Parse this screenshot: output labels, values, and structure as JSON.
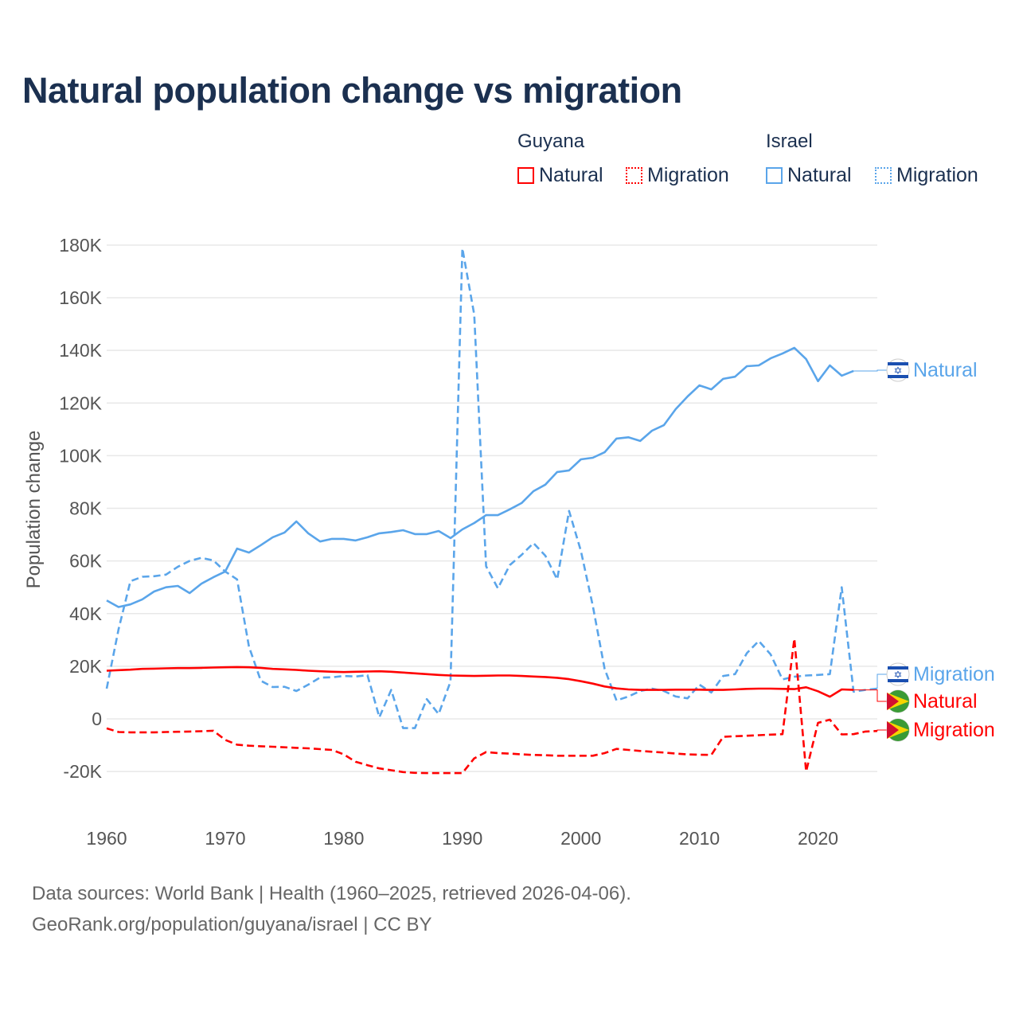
{
  "title": "Natural population change vs migration",
  "legend": {
    "groups": [
      {
        "name": "Guyana",
        "color": "#ff0000",
        "items": [
          "Natural",
          "Migration"
        ]
      },
      {
        "name": "Israel",
        "color": "#5aa5ea",
        "items": [
          "Natural",
          "Migration"
        ]
      }
    ]
  },
  "footer": {
    "line1": "Data sources: World Bank | Health (1960–2025, retrieved 2026-04-06).",
    "line2": "GeoRank.org/population/guyana/israel | CC BY"
  },
  "chart_data": {
    "type": "line",
    "title": "Natural population change vs migration",
    "xlabel": "",
    "ylabel": "Population change",
    "xlim": [
      1960,
      2025
    ],
    "ylim": [
      -20000,
      180000
    ],
    "x_ticks": [
      "1960",
      "1970",
      "1980",
      "1990",
      "2000",
      "2010",
      "2020"
    ],
    "y_ticks": [
      "-20K",
      "0",
      "20K",
      "40K",
      "60K",
      "80K",
      "100K",
      "120K",
      "140K",
      "160K",
      "180K"
    ],
    "y_tick_values": [
      -20,
      0,
      20,
      40,
      60,
      80,
      100,
      120,
      140,
      160,
      180
    ],
    "units": "thousands",
    "grid": true,
    "series": [
      {
        "name": "Israel Natural",
        "country": "Israel",
        "kind": "Natural",
        "label": "Natural",
        "color": "#5aa5ea",
        "dash": false,
        "start": 1960,
        "values": [
          45,
          42.5,
          43.5,
          45.4,
          48.4,
          50,
          50.5,
          47.8,
          51.4,
          53.8,
          56,
          64.7,
          63.2,
          66,
          69,
          70.8,
          75,
          70.5,
          67.4,
          68.4,
          68.4,
          67.8,
          69,
          70.5,
          71,
          71.7,
          70.2,
          70.2,
          71.4,
          68.7,
          72,
          74.4,
          77.4,
          77.4,
          79.6,
          82,
          86.5,
          89,
          93.8,
          94.4,
          98.6,
          99.2,
          101.3,
          106.5,
          107,
          105.6,
          109.5,
          111.6,
          117.7,
          122.5,
          126.7,
          125.2,
          129.2,
          130,
          134,
          134.3,
          137,
          138.8,
          141,
          136.7,
          128.3,
          134.3,
          130.4,
          132.2
        ]
      },
      {
        "name": "Israel Migration",
        "country": "Israel",
        "kind": "Migration",
        "label": "Migration",
        "color": "#5aa5ea",
        "dash": true,
        "start": 1960,
        "values": [
          11.5,
          34,
          52.3,
          54,
          54.2,
          54.8,
          57.8,
          60,
          61.2,
          60.2,
          56,
          53,
          27.5,
          14.5,
          12.1,
          12.2,
          10.6,
          13,
          15.7,
          15.8,
          16.3,
          16.1,
          16.6,
          0.6,
          11,
          -3.5,
          -3.5,
          7.5,
          1.8,
          14.2,
          178.8,
          153.6,
          58,
          49.6,
          58.4,
          62.3,
          66.8,
          62,
          53,
          79,
          63.8,
          43,
          19,
          7,
          8.5,
          10.6,
          11.5,
          10.6,
          8.5,
          7.8,
          13,
          10,
          16.3,
          17,
          25,
          29.6,
          24.5,
          15,
          16,
          16.5,
          16.7,
          17,
          50,
          10.3,
          11,
          11.5
        ]
      },
      {
        "name": "Guyana Natural",
        "country": "Guyana",
        "kind": "Natural",
        "label": "Natural",
        "color": "#ff0000",
        "dash": false,
        "start": 1960,
        "values": [
          18.3,
          18.5,
          18.7,
          19,
          19.1,
          19.2,
          19.3,
          19.3,
          19.4,
          19.5,
          19.6,
          19.7,
          19.6,
          19.4,
          19,
          18.8,
          18.6,
          18.3,
          18.1,
          17.9,
          17.8,
          17.9,
          18,
          18.1,
          17.9,
          17.6,
          17.3,
          17,
          16.7,
          16.5,
          16.4,
          16.3,
          16.4,
          16.5,
          16.5,
          16.3,
          16.1,
          15.9,
          15.6,
          15.1,
          14.3,
          13.4,
          12.3,
          11.6,
          11.2,
          11,
          11,
          11,
          11.1,
          11.1,
          11.1,
          11,
          11,
          11.2,
          11.4,
          11.5,
          11.5,
          11.4,
          11.3,
          12,
          10.5,
          8.4,
          11.2,
          11
        ]
      },
      {
        "name": "Guyana Migration",
        "country": "Guyana",
        "kind": "Migration",
        "label": "Migration",
        "color": "#ff0000",
        "dash": true,
        "start": 1960,
        "values": [
          -3.6,
          -5,
          -5.1,
          -5.1,
          -5.1,
          -5,
          -4.9,
          -4.8,
          -4.7,
          -4.5,
          -8,
          -9.8,
          -10.2,
          -10.4,
          -10.6,
          -10.8,
          -11,
          -11.2,
          -11.5,
          -11.8,
          -13.5,
          -16.3,
          -17.6,
          -18.8,
          -19.5,
          -20.2,
          -20.5,
          -20.6,
          -20.6,
          -20.6,
          -20.6,
          -15,
          -12.6,
          -13,
          -13.2,
          -13.5,
          -13.7,
          -13.8,
          -14,
          -14,
          -14,
          -14,
          -13,
          -11.4,
          -11.8,
          -12.2,
          -12.5,
          -12.8,
          -13.2,
          -13.5,
          -13.6,
          -13.7,
          -6.8,
          -6.6,
          -6.4,
          -6.2,
          -6,
          -5.8,
          30.5,
          -20,
          -1.5,
          -0.3,
          -5.9,
          -5.8,
          -4.8,
          -4.6
        ]
      }
    ]
  }
}
